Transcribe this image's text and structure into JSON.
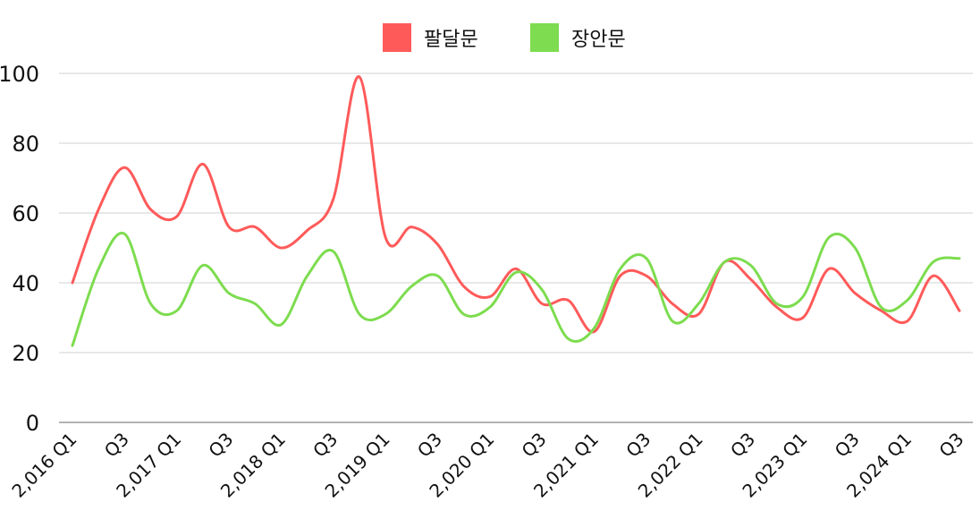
{
  "chart_data": {
    "type": "line",
    "title": "",
    "xlabel": "",
    "ylabel": "",
    "ylim": [
      0,
      100
    ],
    "yticks": [
      0,
      20,
      40,
      60,
      80,
      100
    ],
    "grid": true,
    "legend_position": "top-center",
    "x": [
      "2,016 Q1",
      "Q2",
      "Q3",
      "Q4",
      "2,017 Q1",
      "Q2",
      "Q3",
      "Q4",
      "2,018 Q1",
      "Q2",
      "Q3",
      "Q4",
      "2,019 Q1",
      "Q2",
      "Q3",
      "Q4",
      "2,020 Q1",
      "Q2",
      "Q3",
      "Q4",
      "2,021 Q1",
      "Q2",
      "Q3",
      "Q4",
      "2,022 Q1",
      "Q2",
      "Q3",
      "Q4",
      "2,023 Q1",
      "Q2",
      "Q3",
      "Q4",
      "2,024 Q1",
      "Q2",
      "Q3"
    ],
    "x_tick_labels": [
      "2,016 Q1",
      "Q3",
      "2,017 Q1",
      "Q3",
      "2,018 Q1",
      "Q3",
      "2,019 Q1",
      "Q3",
      "2,020 Q1",
      "Q3",
      "2,021 Q1",
      "Q3",
      "2,022 Q1",
      "Q3",
      "2,023 Q1",
      "Q3",
      "2,024 Q1",
      "Q3"
    ],
    "series": [
      {
        "name": "팔달문",
        "color": "#ff5a5a",
        "values": [
          40,
          61,
          73,
          61,
          59,
          74,
          56,
          56,
          50,
          55,
          64,
          99,
          53,
          56,
          51,
          39,
          36,
          44,
          34,
          35,
          26,
          42,
          42,
          34,
          31,
          46,
          41,
          33,
          30,
          44,
          37,
          32,
          29,
          42,
          32
        ]
      },
      {
        "name": "장안문",
        "color": "#7ddc4f",
        "values": [
          22,
          44,
          54,
          34,
          32,
          45,
          37,
          34,
          28,
          42,
          49,
          31,
          31,
          39,
          42,
          31,
          33,
          43,
          38,
          24,
          27,
          44,
          47,
          29,
          34,
          46,
          45,
          34,
          36,
          53,
          50,
          33,
          35,
          46,
          47
        ]
      }
    ]
  }
}
